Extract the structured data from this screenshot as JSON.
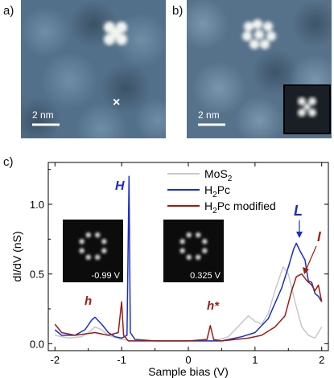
{
  "panels": {
    "a": {
      "label": "a)",
      "scalebar": "2 nm",
      "marker": "×"
    },
    "b": {
      "label": "b)",
      "scalebar": "2 nm"
    },
    "c": {
      "label": "c)"
    }
  },
  "chart_data": {
    "type": "line",
    "xlabel": "Sample bias (V)",
    "ylabel": "dI/dV (nS)",
    "xlim": [
      -2.1,
      2.1
    ],
    "ylim": [
      -0.05,
      1.3
    ],
    "x_ticks": [
      "-2",
      "-1",
      "0",
      "1",
      "2"
    ],
    "y_ticks": [
      "0.0",
      "0.5",
      "1.0"
    ],
    "legend_position": "top-right",
    "series": [
      {
        "name": "MoS₂",
        "name_parts": {
          "base": "MoS",
          "sub": "2"
        },
        "color": "#c8c8c8",
        "points": [
          [
            -2.0,
            0.06
          ],
          [
            -1.8,
            0.04
          ],
          [
            -1.6,
            0.05
          ],
          [
            -1.5,
            0.08
          ],
          [
            -1.4,
            0.12
          ],
          [
            -1.3,
            0.1
          ],
          [
            -1.2,
            0.06
          ],
          [
            -1.0,
            0.03
          ],
          [
            -0.8,
            0.02
          ],
          [
            -0.5,
            0.02
          ],
          [
            0.0,
            0.02
          ],
          [
            0.4,
            0.02
          ],
          [
            0.6,
            0.05
          ],
          [
            0.8,
            0.15
          ],
          [
            0.9,
            0.2
          ],
          [
            1.0,
            0.16
          ],
          [
            1.1,
            0.14
          ],
          [
            1.2,
            0.22
          ],
          [
            1.3,
            0.38
          ],
          [
            1.42,
            0.55
          ],
          [
            1.5,
            0.5
          ],
          [
            1.6,
            0.3
          ],
          [
            1.7,
            0.12
          ],
          [
            1.8,
            0.06
          ],
          [
            1.9,
            0.04
          ],
          [
            2.0,
            0.12
          ]
        ]
      },
      {
        "name": "H₂Pc",
        "name_parts": {
          "base": "H",
          "sub": "2",
          "rest": "Pc"
        },
        "color": "#1a2ec8",
        "points": [
          [
            -2.0,
            0.1
          ],
          [
            -1.9,
            0.06
          ],
          [
            -1.7,
            0.06
          ],
          [
            -1.55,
            0.1
          ],
          [
            -1.45,
            0.17
          ],
          [
            -1.4,
            0.19
          ],
          [
            -1.3,
            0.14
          ],
          [
            -1.2,
            0.08
          ],
          [
            -1.1,
            0.05
          ],
          [
            -1.0,
            0.04
          ],
          [
            -0.92,
            0.06
          ],
          [
            -0.89,
            1.2
          ],
          [
            -0.87,
            0.08
          ],
          [
            -0.8,
            0.03
          ],
          [
            -0.5,
            0.02
          ],
          [
            0.0,
            0.02
          ],
          [
            0.5,
            0.02
          ],
          [
            0.8,
            0.05
          ],
          [
            1.0,
            0.08
          ],
          [
            1.2,
            0.18
          ],
          [
            1.4,
            0.4
          ],
          [
            1.5,
            0.55
          ],
          [
            1.58,
            0.68
          ],
          [
            1.62,
            0.72
          ],
          [
            1.68,
            0.66
          ],
          [
            1.75,
            0.6
          ],
          [
            1.8,
            0.45
          ],
          [
            1.85,
            0.44
          ],
          [
            1.9,
            0.36
          ],
          [
            1.95,
            0.34
          ],
          [
            2.0,
            0.3
          ]
        ]
      },
      {
        "name": "H₂Pc modified",
        "name_parts": {
          "base": "H",
          "sub": "2",
          "rest": "Pc modified"
        },
        "color": "#9a1d10",
        "points": [
          [
            -2.0,
            0.14
          ],
          [
            -1.9,
            0.08
          ],
          [
            -1.7,
            0.06
          ],
          [
            -1.55,
            0.07
          ],
          [
            -1.4,
            0.08
          ],
          [
            -1.2,
            0.06
          ],
          [
            -1.05,
            0.08
          ],
          [
            -1.0,
            0.3
          ],
          [
            -0.97,
            0.06
          ],
          [
            -0.9,
            0.02
          ],
          [
            -0.5,
            0.02
          ],
          [
            0.0,
            0.02
          ],
          [
            0.28,
            0.03
          ],
          [
            0.33,
            0.13
          ],
          [
            0.38,
            0.03
          ],
          [
            0.5,
            0.02
          ],
          [
            0.9,
            0.04
          ],
          [
            1.1,
            0.06
          ],
          [
            1.3,
            0.12
          ],
          [
            1.45,
            0.2
          ],
          [
            1.55,
            0.38
          ],
          [
            1.62,
            0.48
          ],
          [
            1.7,
            0.5
          ],
          [
            1.78,
            0.45
          ],
          [
            1.85,
            0.42
          ],
          [
            1.9,
            0.38
          ],
          [
            1.95,
            0.42
          ],
          [
            2.0,
            0.3
          ]
        ]
      }
    ],
    "annotations": [
      {
        "text": "H",
        "color": "#1a2ec8"
      },
      {
        "text": "L",
        "color": "#1a2ec8"
      },
      {
        "text": "h",
        "color": "#9a1d10"
      },
      {
        "text": "h*",
        "color": "#9a1d10"
      },
      {
        "text": "l",
        "color": "#9a1d10"
      }
    ],
    "insets": [
      {
        "label": "-0.99 V"
      },
      {
        "label": "0.325 V"
      }
    ]
  }
}
